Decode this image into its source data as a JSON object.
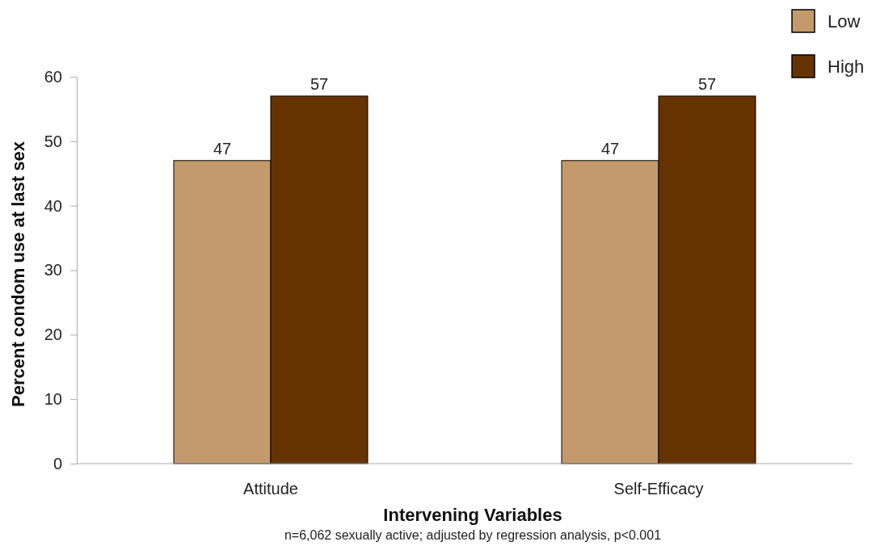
{
  "chart_data": {
    "type": "bar",
    "xlabel": "Intervening Variables",
    "ylabel": "Percent condom use at last sex",
    "categories": [
      "Attitude",
      "Self-Efficacy"
    ],
    "series": [
      {
        "name": "Low",
        "color": "#c49a6c",
        "values": [
          47,
          47
        ]
      },
      {
        "name": "High",
        "color": "#663300",
        "values": [
          57,
          57
        ]
      }
    ],
    "ylim": [
      0,
      60
    ],
    "yticks": [
      0,
      10,
      20,
      30,
      40,
      50,
      60
    ],
    "grid": false,
    "legend": "top right",
    "data_labels": true,
    "annotations": [
      "n=6,062 sexually active; adjusted by regression analysis, p<0.001"
    ]
  }
}
